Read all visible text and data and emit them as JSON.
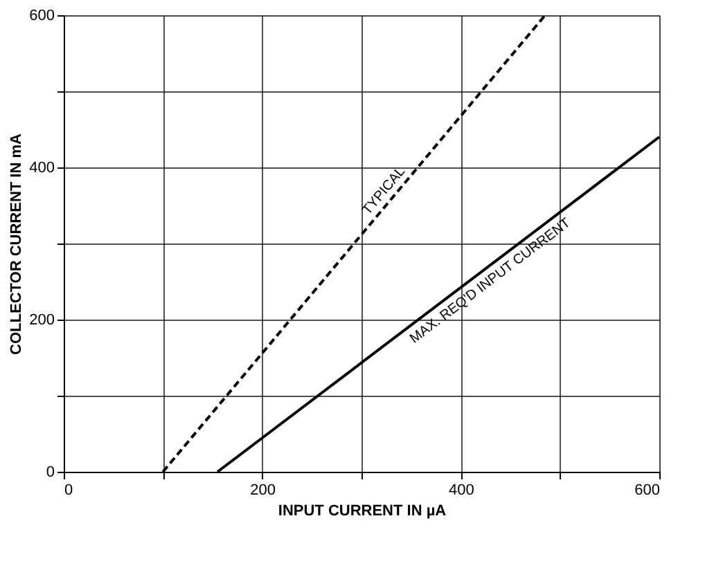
{
  "chart_data": {
    "type": "line",
    "xlabel": "INPUT CURRENT IN µA",
    "ylabel": "COLLECTOR CURRENT IN mA",
    "xlim": [
      0,
      600
    ],
    "ylim": [
      0,
      600
    ],
    "xticks": [
      0,
      {
        "value": 100,
        "label": null
      },
      200,
      {
        "value": 300,
        "label": null
      },
      400,
      {
        "value": 500,
        "label": null
      },
      600
    ],
    "yticks": [
      0,
      {
        "value": 100,
        "label": null
      },
      200,
      {
        "value": 300,
        "label": null
      },
      400,
      {
        "value": 500,
        "label": null
      },
      600
    ],
    "grid": true,
    "marker": "none",
    "series": [
      {
        "name": "TYPICAL",
        "color": "#000000",
        "line_style": "dashed",
        "x": [
          100,
          485
        ],
        "values": [
          0,
          600
        ]
      },
      {
        "name": "MAX. REQ'D INPUT CURRENT",
        "color": "#000000",
        "line_style": "solid",
        "x": [
          155,
          600
        ],
        "values": [
          0,
          440
        ]
      }
    ]
  }
}
